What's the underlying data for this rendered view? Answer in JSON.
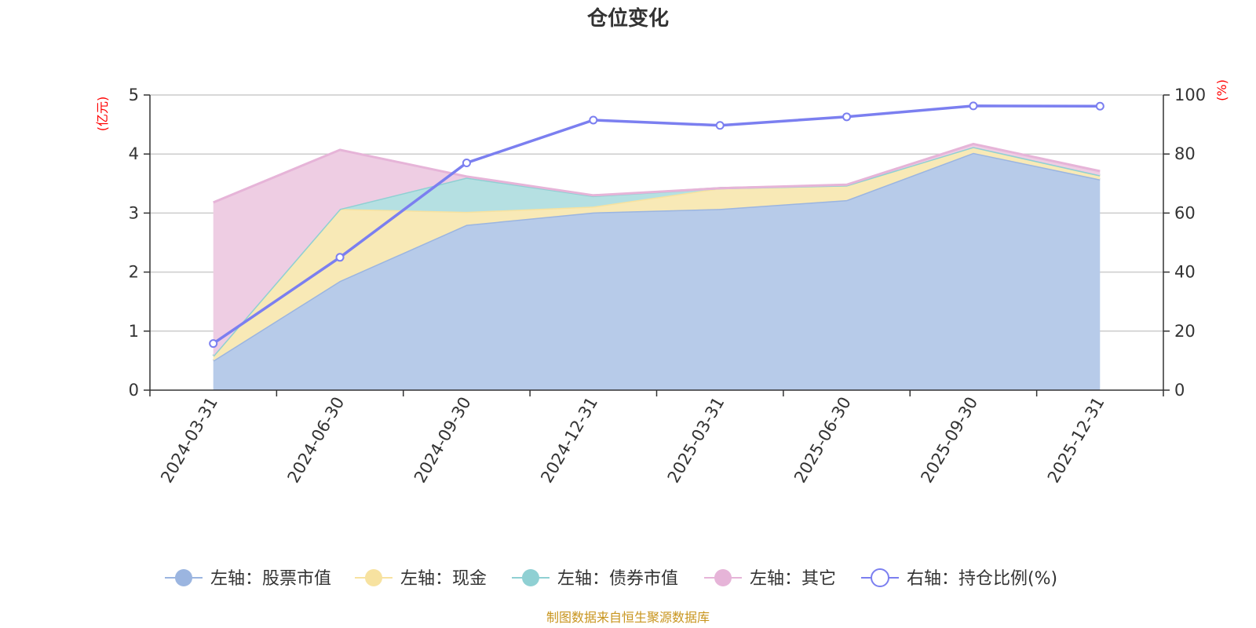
{
  "chart_data": {
    "type": "area",
    "title": "仓位变化",
    "categories": [
      "2024-03-31",
      "2024-06-30",
      "2024-09-30",
      "2024-12-31",
      "2025-03-31",
      "2025-06-30",
      "2025-09-30",
      "2025-12-31"
    ],
    "left_axis": {
      "unit": "(亿元)",
      "ylim": [
        0,
        5
      ],
      "ticks": [
        "0",
        "1",
        "2",
        "3",
        "4",
        "5"
      ]
    },
    "right_axis": {
      "unit": "(%)",
      "ylim": [
        0,
        100
      ],
      "ticks": [
        "0",
        "20",
        "40",
        "60",
        "80",
        "100"
      ]
    },
    "stacked_series": [
      {
        "name": "左轴：股票市值",
        "color": "#9bb5e0",
        "fill": "#b7cbe9",
        "values": [
          0.5,
          1.85,
          2.8,
          3.01,
          3.07,
          3.22,
          4.02,
          3.57
        ]
      },
      {
        "name": "左轴：现金",
        "color": "#f7e2a0",
        "fill": "#f8e9b6",
        "values": [
          0.08,
          1.22,
          0.22,
          0.1,
          0.35,
          0.25,
          0.1,
          0.07
        ]
      },
      {
        "name": "左轴：债券市值",
        "color": "#8fd0d3",
        "fill": "#b5e0e2",
        "values": [
          0,
          0,
          0.58,
          0.18,
          0,
          0,
          0,
          0
        ]
      },
      {
        "name": "左轴：其它",
        "color": "#e6b4d8",
        "fill": "#eecde3",
        "values": [
          2.6,
          1.0,
          0.02,
          0.01,
          0,
          0.01,
          0.05,
          0.07
        ]
      }
    ],
    "line_series": {
      "name": "右轴：持仓比例(%)",
      "color": "#7b7ff0",
      "values": [
        15.8,
        45,
        77,
        91.5,
        89.7,
        92.6,
        96.3,
        96.2
      ]
    },
    "source": "制图数据来自恒生聚源数据库"
  }
}
